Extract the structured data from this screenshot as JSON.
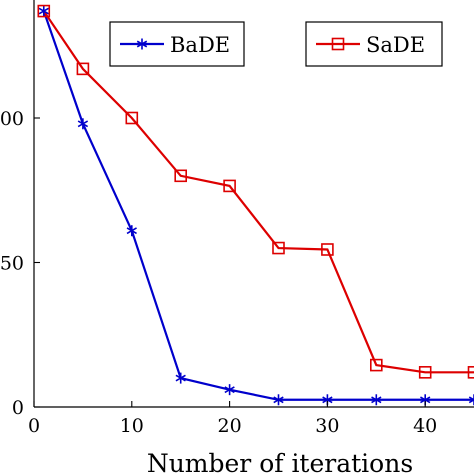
{
  "chart_data": {
    "type": "line",
    "title": "",
    "xlabel": "Number of iterations",
    "ylabel": "",
    "xlim": [
      0,
      46
    ],
    "ylim": [
      0,
      140
    ],
    "x_ticks": [
      0,
      10,
      20,
      30,
      40
    ],
    "x_tick_labels": [
      "0",
      "10",
      "20",
      "30",
      "40"
    ],
    "y_ticks": [
      0,
      50,
      100
    ],
    "y_tick_labels": [
      "0",
      "50",
      "100"
    ],
    "grid": false,
    "legend_position": "top",
    "series": [
      {
        "name": "BaDE",
        "color": "#0000cc",
        "marker": "star",
        "x": [
          1,
          5,
          10,
          15,
          20,
          25,
          30,
          35,
          40,
          46
        ],
        "y": [
          137,
          98,
          61,
          10,
          6,
          2.5,
          2.5,
          2.5,
          2.5,
          2.5
        ]
      },
      {
        "name": "SaDE",
        "color": "#dd0000",
        "marker": "square",
        "x": [
          1,
          5,
          10,
          15,
          20,
          25,
          30,
          35,
          40,
          46
        ],
        "y": [
          137,
          117,
          100,
          80,
          76.5,
          55,
          54.5,
          14.5,
          12,
          12
        ]
      }
    ]
  }
}
